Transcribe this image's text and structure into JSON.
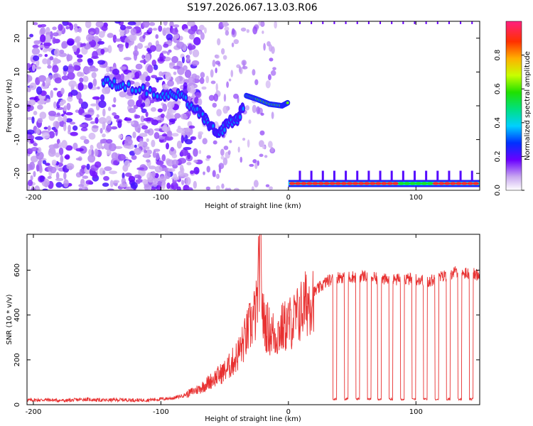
{
  "title": "S197.2026.067.13.03.R06",
  "chart_data": [
    {
      "type": "heatmap",
      "name": "spectrogram",
      "xlabel": "Height of straight line (km)",
      "ylabel": "Frequency (Hz)",
      "xlim": [
        -205,
        150
      ],
      "ylim": [
        -25,
        25
      ],
      "xticks": [
        -200,
        -100,
        0,
        100
      ],
      "xtick_labels": [
        "-200",
        "-100",
        "0",
        "100"
      ],
      "yticks": [
        -20,
        -10,
        0,
        10,
        20
      ],
      "ytick_labels": [
        "-20",
        "-10",
        "0",
        "10",
        "20"
      ],
      "colorbar": {
        "label": "Normalized spectral amplitude",
        "range": [
          0,
          1
        ],
        "ticks": [
          0.0,
          0.2,
          0.4,
          0.6,
          0.8
        ],
        "tick_labels": [
          "0.0",
          "0.2",
          "0.4",
          "0.6",
          "0.8"
        ]
      },
      "features": [
        {
          "name": "noise region",
          "x_range": [
            -205,
            -70
          ],
          "y_range": [
            -25,
            25
          ],
          "amplitude": 0.12
        },
        {
          "name": "descending signal",
          "points": [
            [
              -145,
              7
            ],
            [
              -128,
              6
            ],
            [
              -100,
              3
            ],
            [
              -85,
              3
            ],
            [
              -70,
              -2
            ],
            [
              -63,
              -5
            ],
            [
              -55,
              -9
            ],
            [
              -48,
              -5
            ],
            [
              -40,
              -4
            ],
            [
              -35,
              0
            ]
          ],
          "amplitude": 0.3
        },
        {
          "name": "carrier near 0 Hz",
          "x_range": [
            -35,
            0
          ],
          "y_points": [
            [
              -33,
              3
            ],
            [
              -25,
              2
            ],
            [
              -15,
              0.5
            ],
            [
              -5,
              0
            ],
            [
              0,
              1
            ]
          ],
          "amplitude": 0.5
        },
        {
          "name": "carrier near -23 Hz",
          "x_range": [
            0,
            150
          ],
          "y": -23,
          "amplitude": 0.95
        }
      ]
    },
    {
      "type": "line",
      "name": "snr",
      "xlabel": "Height of straight line (km)",
      "ylabel": "SNR (10 * v/v)",
      "xlim": [
        -205,
        150
      ],
      "ylim": [
        0,
        760
      ],
      "xticks": [
        -200,
        -100,
        0,
        100
      ],
      "xtick_labels": [
        "-200",
        "-100",
        "0",
        "100"
      ],
      "yticks": [
        0,
        200,
        400,
        600
      ],
      "ytick_labels": [
        "0",
        "200",
        "400",
        "600"
      ],
      "color": "#e83030",
      "series": [
        {
          "name": "SNR",
          "x": [
            -205,
            -190,
            -175,
            -160,
            -145,
            -130,
            -115,
            -100,
            -90,
            -80,
            -75,
            -70,
            -65,
            -60,
            -55,
            -50,
            -45,
            -40,
            -35,
            -30,
            -25,
            -22,
            -20,
            -15,
            -10,
            -5,
            0,
            5,
            10,
            15,
            20,
            30,
            40,
            50,
            60,
            70,
            80,
            90,
            100,
            110,
            120,
            130,
            140,
            150
          ],
          "y": [
            20,
            22,
            18,
            24,
            20,
            22,
            20,
            25,
            30,
            45,
            60,
            70,
            90,
            110,
            130,
            150,
            180,
            220,
            280,
            350,
            420,
            700,
            380,
            330,
            310,
            340,
            360,
            380,
            420,
            460,
            500,
            550,
            570,
            570,
            575,
            560,
            555,
            560,
            560,
            550,
            570,
            590,
            585,
            580
          ],
          "dropouts_start": [
            35,
            44,
            53,
            62,
            70,
            79,
            88,
            97,
            106,
            115,
            124,
            133,
            142
          ],
          "dropout_width": 3,
          "dropout_level": 25
        }
      ]
    }
  ]
}
